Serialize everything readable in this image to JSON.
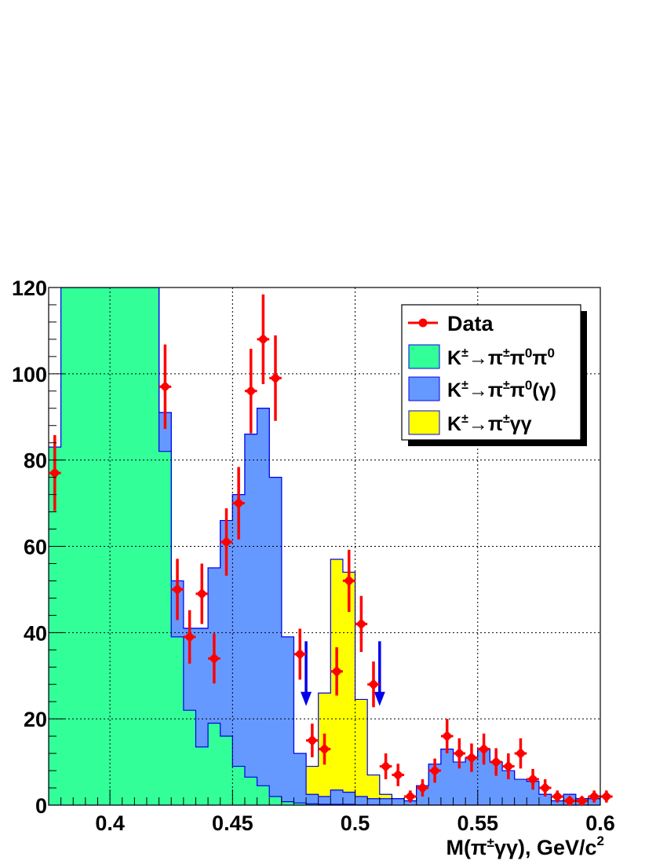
{
  "chart_data": {
    "type": "histogram",
    "xlabel": "M(π±γγ), GeV/c²",
    "xlabel_parts": {
      "main": "M(π",
      "sup1": "±",
      "mid": "γγ), GeV/c",
      "sup2": "2"
    },
    "xlim": [
      0.375,
      0.6
    ],
    "ylim": [
      0,
      120
    ],
    "x_ticks": [
      {
        "value": 0.4,
        "label": "0.4"
      },
      {
        "value": 0.45,
        "label": "0.45"
      },
      {
        "value": 0.5,
        "label": "0.5"
      },
      {
        "value": 0.55,
        "label": "0.55"
      },
      {
        "value": 0.6,
        "label": "0.6"
      }
    ],
    "y_ticks": [
      {
        "value": 0,
        "label": "0"
      },
      {
        "value": 20,
        "label": "20"
      },
      {
        "value": 40,
        "label": "40"
      },
      {
        "value": 60,
        "label": "60"
      },
      {
        "value": 80,
        "label": "80"
      },
      {
        "value": 100,
        "label": "100"
      },
      {
        "value": 120,
        "label": "120"
      }
    ],
    "grid": true,
    "legend_position": "top-right",
    "bin_edges_start": 0.375,
    "bin_width": 0.005,
    "stack_totals": {
      "green_K3pi": [
        83,
        125,
        125,
        125,
        125,
        125,
        125,
        125,
        125,
        82,
        39,
        22,
        13.5,
        19,
        16,
        9,
        6.5,
        4.5,
        2,
        0.8,
        0.5,
        0.3,
        0.2,
        0.2,
        0.2,
        0.1,
        0.1,
        0.1,
        0,
        0,
        0,
        0,
        0,
        0,
        0,
        0,
        0,
        0,
        0,
        0,
        0,
        0,
        0,
        0,
        0
      ],
      "blue_Kpipi0": [
        83,
        125,
        125,
        125,
        125,
        125,
        125,
        125,
        125,
        91,
        52,
        41,
        41,
        55,
        66,
        72,
        86,
        92,
        76,
        39,
        12,
        2.5,
        2,
        3.5,
        3,
        2,
        1.5,
        1.5,
        1.5,
        1,
        4.5,
        9.5,
        13,
        10,
        11,
        13,
        10,
        8,
        6,
        5.5,
        2.5,
        1,
        2.5,
        1.5,
        1.5
      ],
      "yellow_Kpigg": [
        83,
        125,
        125,
        125,
        125,
        125,
        125,
        125,
        125,
        91,
        52,
        41,
        41,
        55,
        66,
        72,
        86,
        92,
        76,
        39,
        12,
        9,
        26,
        57,
        54,
        24.5,
        7,
        2.5,
        1.5,
        1,
        4.5,
        9.5,
        13,
        10,
        11,
        13,
        10,
        8,
        6,
        5.5,
        2.5,
        1,
        2.5,
        1.5,
        1.5
      ]
    },
    "data_points": [
      {
        "x": 0.3775,
        "y": 77,
        "err": 8.8
      },
      {
        "x": 0.4225,
        "y": 97,
        "err": 9.8
      },
      {
        "x": 0.4275,
        "y": 50,
        "err": 7.1
      },
      {
        "x": 0.4325,
        "y": 39,
        "err": 6.2
      },
      {
        "x": 0.4375,
        "y": 49,
        "err": 7.0
      },
      {
        "x": 0.4425,
        "y": 34,
        "err": 5.8
      },
      {
        "x": 0.4475,
        "y": 61,
        "err": 7.8
      },
      {
        "x": 0.4525,
        "y": 70,
        "err": 8.4
      },
      {
        "x": 0.4575,
        "y": 96,
        "err": 9.8
      },
      {
        "x": 0.4625,
        "y": 108,
        "err": 10.4
      },
      {
        "x": 0.4675,
        "y": 99,
        "err": 9.9
      },
      {
        "x": 0.4775,
        "y": 35,
        "err": 5.9
      },
      {
        "x": 0.4825,
        "y": 15,
        "err": 3.9
      },
      {
        "x": 0.4875,
        "y": 13,
        "err": 3.6
      },
      {
        "x": 0.4925,
        "y": 31,
        "err": 5.6
      },
      {
        "x": 0.4975,
        "y": 52,
        "err": 7.2
      },
      {
        "x": 0.5025,
        "y": 42,
        "err": 6.5
      },
      {
        "x": 0.5075,
        "y": 28,
        "err": 5.3
      },
      {
        "x": 0.5125,
        "y": 9,
        "err": 3.0
      },
      {
        "x": 0.5175,
        "y": 7,
        "err": 2.6
      },
      {
        "x": 0.5225,
        "y": 2,
        "err": 1.4
      },
      {
        "x": 0.5275,
        "y": 4,
        "err": 2.0
      },
      {
        "x": 0.5325,
        "y": 8,
        "err": 2.8
      },
      {
        "x": 0.5375,
        "y": 16,
        "err": 4.0
      },
      {
        "x": 0.5425,
        "y": 12,
        "err": 3.5
      },
      {
        "x": 0.5475,
        "y": 11,
        "err": 3.3
      },
      {
        "x": 0.5525,
        "y": 13,
        "err": 3.6
      },
      {
        "x": 0.5575,
        "y": 10,
        "err": 3.2
      },
      {
        "x": 0.5625,
        "y": 9,
        "err": 3.0
      },
      {
        "x": 0.5675,
        "y": 12,
        "err": 3.5
      },
      {
        "x": 0.5725,
        "y": 6,
        "err": 2.4
      },
      {
        "x": 0.5775,
        "y": 4,
        "err": 2.0
      },
      {
        "x": 0.5825,
        "y": 2,
        "err": 1.4
      },
      {
        "x": 0.5875,
        "y": 1,
        "err": 1.0
      },
      {
        "x": 0.5925,
        "y": 1,
        "err": 1.0
      },
      {
        "x": 0.5975,
        "y": 2,
        "err": 1.4
      },
      {
        "x": 0.6025,
        "y": 2,
        "err": 1.4
      }
    ],
    "arrows": [
      {
        "x": 0.48,
        "y_top": 38,
        "y_bottom": 23
      },
      {
        "x": 0.51,
        "y_top": 38,
        "y_bottom": 23
      }
    ],
    "legend": [
      {
        "label": "Data",
        "kind": "marker"
      },
      {
        "label": "K±→π±π⁰π⁰",
        "kind": "fill",
        "parts": [
          "K",
          "±",
          "→π",
          "±",
          "π",
          "0",
          "π",
          "0",
          ""
        ]
      },
      {
        "label": "K±→π±π⁰(γ)",
        "kind": "fill",
        "parts": [
          "K",
          "±",
          "→π",
          "±",
          "π",
          "0",
          "(γ)",
          "",
          ""
        ]
      },
      {
        "label": "K±→π±γγ",
        "kind": "fill",
        "parts": [
          "K",
          "±",
          "→π",
          "±",
          "γγ",
          "",
          "",
          "",
          ""
        ]
      }
    ],
    "colors": {
      "green": "#33ff99",
      "blue": "#6699ff",
      "yellow": "#ffff00",
      "outline": "#0000ee",
      "data": "#ff0000",
      "arrow": "#0000ee"
    }
  }
}
